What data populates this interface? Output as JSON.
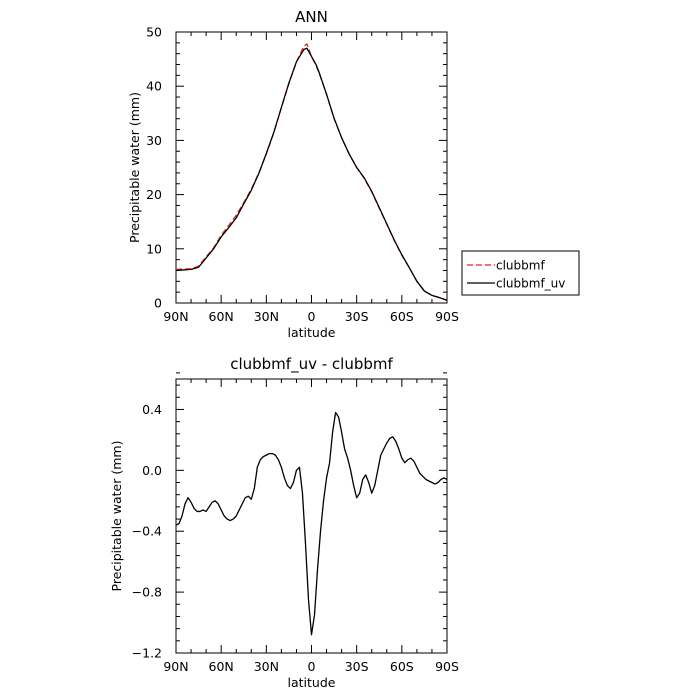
{
  "chart_data": [
    {
      "type": "line",
      "title": "ANN",
      "xlabel": "latitude",
      "ylabel": "Precipitable water (mm)",
      "xlim": [
        90,
        -90
      ],
      "ylim": [
        0,
        50
      ],
      "xticks": [
        90,
        60,
        30,
        0,
        -30,
        -60,
        -90
      ],
      "xticklabels": [
        "90N",
        "60N",
        "30N",
        "0",
        "30S",
        "60S",
        "90S"
      ],
      "yticks": [
        0,
        10,
        20,
        30,
        40,
        50
      ],
      "yticklabels": [
        "0",
        "10",
        "20",
        "30",
        "40",
        "50"
      ],
      "legend": "right",
      "series": [
        {
          "name": "clubbmf",
          "color": "#e0261b",
          "dash": "dashed",
          "x": [
            90,
            85,
            80,
            75,
            70,
            65,
            60,
            55,
            50,
            45,
            40,
            35,
            30,
            25,
            20,
            15,
            10,
            5,
            3,
            0,
            -3,
            -5,
            -10,
            -15,
            -20,
            -25,
            -30,
            -35,
            -40,
            -45,
            -50,
            -55,
            -60,
            -65,
            -70,
            -75,
            -80,
            -85,
            -90
          ],
          "values": [
            6.2,
            6.3,
            6.3,
            6.8,
            8.5,
            10.2,
            12.5,
            14.3,
            16.2,
            18.5,
            21.0,
            24.0,
            27.5,
            31.5,
            36.0,
            40.5,
            44.5,
            47.4,
            47.8,
            45.5,
            43.8,
            42.5,
            38.5,
            34.0,
            30.5,
            27.5,
            25.0,
            23.0,
            20.5,
            17.5,
            14.5,
            11.5,
            8.8,
            6.5,
            4.0,
            2.2,
            1.4,
            1.0,
            0.5
          ]
        },
        {
          "name": "clubbmf_uv",
          "color": "#000000",
          "dash": "solid",
          "x": [
            90,
            85,
            80,
            75,
            70,
            65,
            60,
            55,
            50,
            45,
            40,
            35,
            30,
            25,
            20,
            15,
            10,
            5,
            3,
            0,
            -3,
            -5,
            -10,
            -15,
            -20,
            -25,
            -30,
            -35,
            -40,
            -45,
            -50,
            -55,
            -60,
            -65,
            -70,
            -75,
            -80,
            -85,
            -90
          ],
          "values": [
            6.0,
            6.1,
            6.2,
            6.6,
            8.3,
            10.0,
            12.2,
            13.9,
            15.7,
            18.3,
            20.8,
            23.9,
            27.6,
            31.5,
            36.1,
            40.6,
            44.5,
            46.8,
            47.0,
            45.5,
            44.0,
            42.6,
            38.5,
            34.1,
            30.5,
            27.5,
            25.0,
            23.1,
            20.6,
            17.6,
            14.6,
            11.6,
            8.9,
            6.5,
            4.0,
            2.2,
            1.4,
            1.0,
            0.5
          ]
        }
      ]
    },
    {
      "type": "line",
      "title": "clubbmf_uv - clubbmf",
      "xlabel": "latitude",
      "ylabel": "Precipitable water (mm)",
      "xlim": [
        90,
        -90
      ],
      "ylim": [
        -1.2,
        0.6
      ],
      "xticks": [
        90,
        60,
        30,
        0,
        -30,
        -60,
        -90
      ],
      "xticklabels": [
        "90N",
        "60N",
        "30N",
        "0",
        "30S",
        "60S",
        "90S"
      ],
      "yticks": [
        -1.2,
        -0.8,
        -0.4,
        0.0,
        0.4
      ],
      "yticklabels": [
        "−1.2",
        "−0.8",
        "−0.4",
        "0.0",
        "0.4"
      ],
      "series": [
        {
          "color": "#000000",
          "x": [
            90,
            88,
            86,
            84,
            82,
            80,
            78,
            76,
            74,
            72,
            70,
            68,
            66,
            64,
            62,
            60,
            58,
            56,
            54,
            52,
            50,
            48,
            46,
            44,
            42,
            40,
            38,
            36,
            34,
            32,
            30,
            28,
            26,
            24,
            22,
            20,
            18,
            16,
            14,
            12,
            10,
            8,
            6,
            4,
            2,
            0,
            -2,
            -4,
            -6,
            -8,
            -10,
            -12,
            -14,
            -16,
            -18,
            -20,
            -22,
            -24,
            -26,
            -28,
            -30,
            -32,
            -34,
            -36,
            -38,
            -40,
            -42,
            -44,
            -46,
            -48,
            -50,
            -52,
            -54,
            -56,
            -58,
            -60,
            -62,
            -64,
            -66,
            -68,
            -70,
            -72,
            -74,
            -76,
            -78,
            -80,
            -82,
            -84,
            -86,
            -88,
            -90
          ],
          "values": [
            -0.36,
            -0.35,
            -0.3,
            -0.22,
            -0.18,
            -0.21,
            -0.25,
            -0.27,
            -0.27,
            -0.26,
            -0.27,
            -0.24,
            -0.21,
            -0.2,
            -0.22,
            -0.26,
            -0.3,
            -0.32,
            -0.33,
            -0.32,
            -0.3,
            -0.26,
            -0.22,
            -0.18,
            -0.17,
            -0.19,
            -0.12,
            0.02,
            0.07,
            0.09,
            0.1,
            0.11,
            0.11,
            0.1,
            0.07,
            0.02,
            -0.05,
            -0.1,
            -0.12,
            -0.08,
            0.0,
            0.02,
            -0.15,
            -0.48,
            -0.85,
            -1.08,
            -0.95,
            -0.65,
            -0.4,
            -0.2,
            -0.05,
            0.05,
            0.25,
            0.38,
            0.35,
            0.25,
            0.14,
            0.08,
            0.0,
            -0.1,
            -0.18,
            -0.15,
            -0.06,
            -0.03,
            -0.08,
            -0.15,
            -0.1,
            0.0,
            0.1,
            0.14,
            0.18,
            0.21,
            0.22,
            0.19,
            0.14,
            0.08,
            0.05,
            0.07,
            0.08,
            0.06,
            0.02,
            -0.02,
            -0.04,
            -0.06,
            -0.07,
            -0.08,
            -0.09,
            -0.08,
            -0.06,
            -0.05,
            -0.06
          ]
        }
      ]
    }
  ]
}
